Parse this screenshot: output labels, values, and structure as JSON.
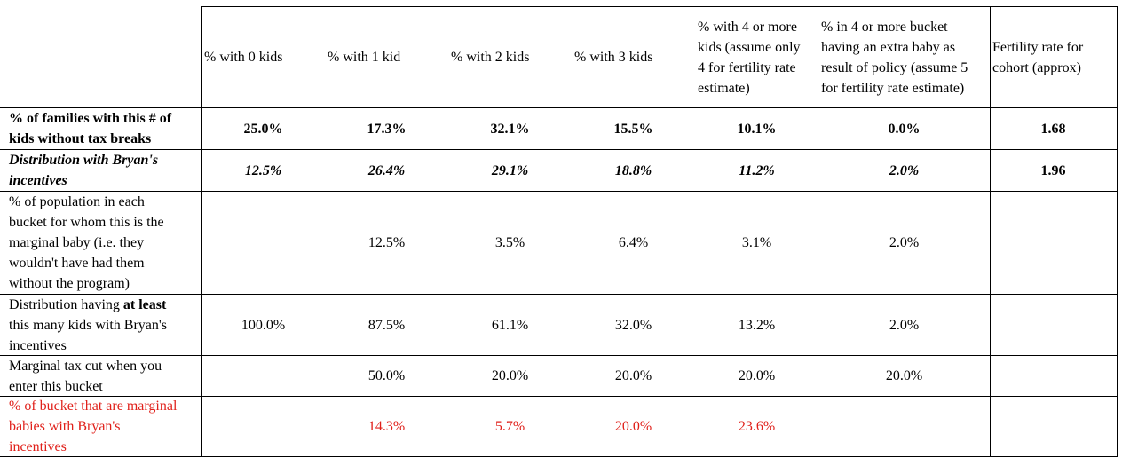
{
  "header": {
    "col0": "% with 0 kids",
    "col1": "% with 1 kid",
    "col2": "% with 2 kids",
    "col3": "% with 3 kids",
    "col4_lines": [
      "% with 4 or more",
      "kids (assume only",
      "4 for fertility rate",
      "estimate)"
    ],
    "col5_lines": [
      "% in 4 or more bucket",
      "having an extra baby as",
      "result of policy (assume 5",
      "for fertility rate estimate)"
    ],
    "fert_lines": [
      "Fertility rate for",
      "cohort (approx)"
    ]
  },
  "rows": [
    {
      "label_lines": [
        "% of families with this # of",
        "kids without tax breaks"
      ],
      "values": [
        "25.0%",
        "17.3%",
        "32.1%",
        "15.5%",
        "10.1%",
        "0.0%"
      ],
      "fertility": "1.68"
    },
    {
      "label_lines": [
        "Distribution with Bryan's",
        "incentives"
      ],
      "values": [
        "12.5%",
        "26.4%",
        "29.1%",
        "18.8%",
        "11.2%",
        "2.0%"
      ],
      "fertility": "1.96"
    },
    {
      "label_lines": [
        "% of population in each",
        "bucket for whom this is the",
        "marginal baby (i.e. they",
        "wouldn't have had them",
        "without the program)"
      ],
      "values": [
        "",
        "12.5%",
        "3.5%",
        "6.4%",
        "3.1%",
        "2.0%"
      ],
      "fertility": ""
    },
    {
      "label_line1_pre": "Distribution having ",
      "label_line1_bold": "at least",
      "label_lines_rest": [
        "this many kids with Bryan's",
        "incentives"
      ],
      "values": [
        "100.0%",
        "87.5%",
        "61.1%",
        "32.0%",
        "13.2%",
        "2.0%"
      ],
      "fertility": ""
    },
    {
      "label_lines": [
        "Marginal tax cut when you",
        "enter this bucket"
      ],
      "values": [
        "",
        "50.0%",
        "20.0%",
        "20.0%",
        "20.0%",
        "20.0%"
      ],
      "fertility": ""
    },
    {
      "label_lines": [
        "% of bucket that are marginal",
        "babies with Bryan's",
        "incentives"
      ],
      "values": [
        "",
        "14.3%",
        "5.7%",
        "20.0%",
        "23.6%",
        ""
      ],
      "fertility": ""
    }
  ],
  "colors": {
    "highlight_text": "#e0201a",
    "grid": "#000000"
  }
}
